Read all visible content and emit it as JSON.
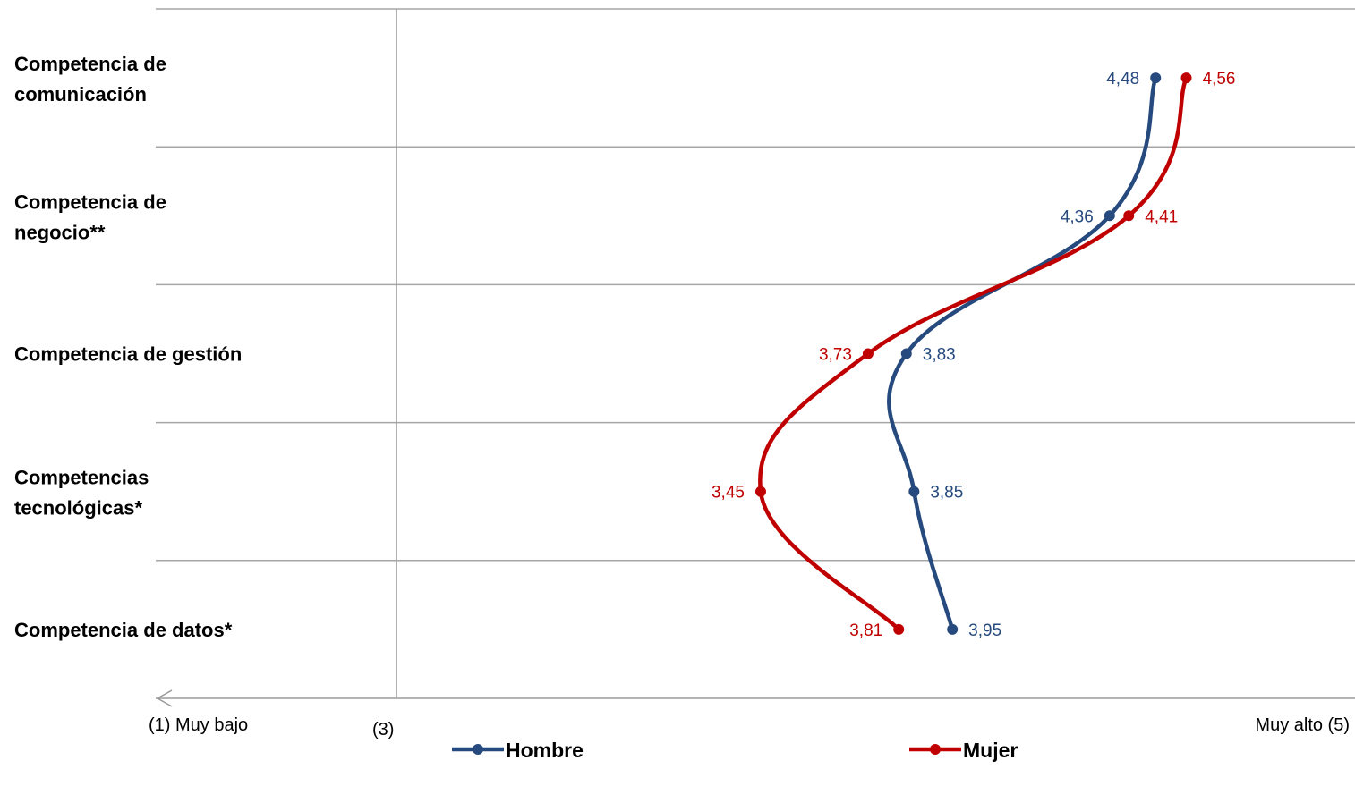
{
  "chart_data": {
    "type": "line",
    "orientation": "horizontal-values",
    "categories": [
      "Competencia de comunicación",
      "Competencia de negocio**",
      "Competencia de gestión",
      "Competencias tecnológicas*",
      "Competencia de datos*"
    ],
    "series": [
      {
        "name": "Hombre",
        "color": "#264a7e",
        "values": [
          4.48,
          4.36,
          3.83,
          3.85,
          3.95
        ],
        "labels": [
          "4,48",
          "4,36",
          "3,83",
          "3,85",
          "3,95"
        ]
      },
      {
        "name": "Mujer",
        "color": "#c00000",
        "values": [
          4.56,
          4.41,
          3.73,
          3.45,
          3.81
        ],
        "labels": [
          "4,56",
          "4,41",
          "3,73",
          "3,45",
          "3,81"
        ]
      }
    ],
    "xlim": [
      2.5,
      5
    ],
    "x_tick_labels": [
      "(1) Muy bajo",
      "(3)",
      "Muy alto (5)"
    ],
    "grid": true,
    "legend_position": "bottom"
  }
}
